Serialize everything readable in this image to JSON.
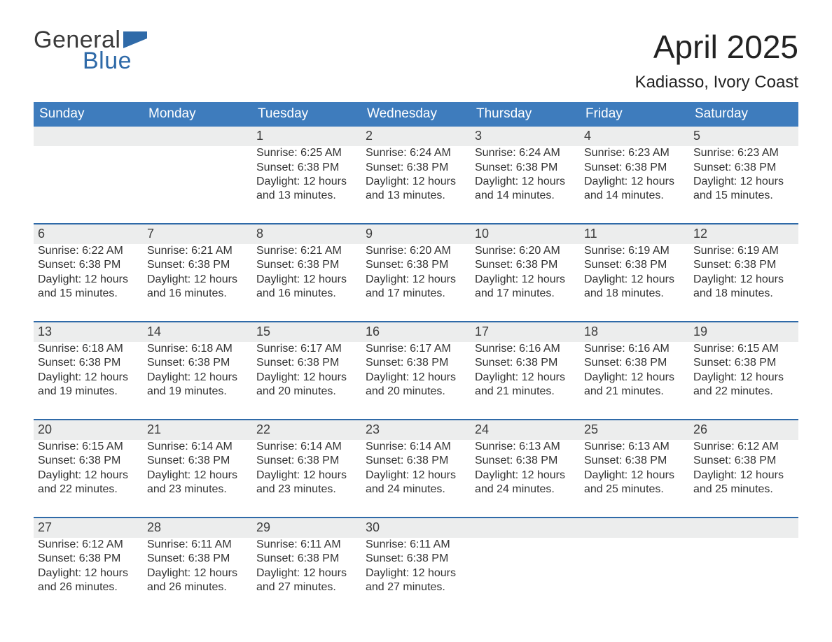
{
  "logo": {
    "word1": "General",
    "word2": "Blue"
  },
  "header": {
    "title": "April 2025",
    "location": "Kadiasso, Ivory Coast"
  },
  "colors": {
    "header_bg": "#3e7cbd",
    "header_fg": "#ffffff",
    "daynum_bg": "#eceded",
    "rule": "#2f6aa8",
    "text": "#333333",
    "logo_blue": "#2f6aa8"
  },
  "typography": {
    "title_fontsize": 46,
    "location_fontsize": 24,
    "weekday_fontsize": 19,
    "daynum_fontsize": 18,
    "cell_fontsize": 16
  },
  "calendar": {
    "type": "month-grid",
    "weekdays": [
      "Sunday",
      "Monday",
      "Tuesday",
      "Wednesday",
      "Thursday",
      "Friday",
      "Saturday"
    ],
    "labels": {
      "sunrise": "Sunrise: ",
      "sunset": "Sunset: ",
      "daylight": "Daylight: "
    },
    "weeks": [
      [
        null,
        null,
        {
          "n": "1",
          "sunrise": "6:25 AM",
          "sunset": "6:38 PM",
          "daylight": "12 hours and 13 minutes."
        },
        {
          "n": "2",
          "sunrise": "6:24 AM",
          "sunset": "6:38 PM",
          "daylight": "12 hours and 13 minutes."
        },
        {
          "n": "3",
          "sunrise": "6:24 AM",
          "sunset": "6:38 PM",
          "daylight": "12 hours and 14 minutes."
        },
        {
          "n": "4",
          "sunrise": "6:23 AM",
          "sunset": "6:38 PM",
          "daylight": "12 hours and 14 minutes."
        },
        {
          "n": "5",
          "sunrise": "6:23 AM",
          "sunset": "6:38 PM",
          "daylight": "12 hours and 15 minutes."
        }
      ],
      [
        {
          "n": "6",
          "sunrise": "6:22 AM",
          "sunset": "6:38 PM",
          "daylight": "12 hours and 15 minutes."
        },
        {
          "n": "7",
          "sunrise": "6:21 AM",
          "sunset": "6:38 PM",
          "daylight": "12 hours and 16 minutes."
        },
        {
          "n": "8",
          "sunrise": "6:21 AM",
          "sunset": "6:38 PM",
          "daylight": "12 hours and 16 minutes."
        },
        {
          "n": "9",
          "sunrise": "6:20 AM",
          "sunset": "6:38 PM",
          "daylight": "12 hours and 17 minutes."
        },
        {
          "n": "10",
          "sunrise": "6:20 AM",
          "sunset": "6:38 PM",
          "daylight": "12 hours and 17 minutes."
        },
        {
          "n": "11",
          "sunrise": "6:19 AM",
          "sunset": "6:38 PM",
          "daylight": "12 hours and 18 minutes."
        },
        {
          "n": "12",
          "sunrise": "6:19 AM",
          "sunset": "6:38 PM",
          "daylight": "12 hours and 18 minutes."
        }
      ],
      [
        {
          "n": "13",
          "sunrise": "6:18 AM",
          "sunset": "6:38 PM",
          "daylight": "12 hours and 19 minutes."
        },
        {
          "n": "14",
          "sunrise": "6:18 AM",
          "sunset": "6:38 PM",
          "daylight": "12 hours and 19 minutes."
        },
        {
          "n": "15",
          "sunrise": "6:17 AM",
          "sunset": "6:38 PM",
          "daylight": "12 hours and 20 minutes."
        },
        {
          "n": "16",
          "sunrise": "6:17 AM",
          "sunset": "6:38 PM",
          "daylight": "12 hours and 20 minutes."
        },
        {
          "n": "17",
          "sunrise": "6:16 AM",
          "sunset": "6:38 PM",
          "daylight": "12 hours and 21 minutes."
        },
        {
          "n": "18",
          "sunrise": "6:16 AM",
          "sunset": "6:38 PM",
          "daylight": "12 hours and 21 minutes."
        },
        {
          "n": "19",
          "sunrise": "6:15 AM",
          "sunset": "6:38 PM",
          "daylight": "12 hours and 22 minutes."
        }
      ],
      [
        {
          "n": "20",
          "sunrise": "6:15 AM",
          "sunset": "6:38 PM",
          "daylight": "12 hours and 22 minutes."
        },
        {
          "n": "21",
          "sunrise": "6:14 AM",
          "sunset": "6:38 PM",
          "daylight": "12 hours and 23 minutes."
        },
        {
          "n": "22",
          "sunrise": "6:14 AM",
          "sunset": "6:38 PM",
          "daylight": "12 hours and 23 minutes."
        },
        {
          "n": "23",
          "sunrise": "6:14 AM",
          "sunset": "6:38 PM",
          "daylight": "12 hours and 24 minutes."
        },
        {
          "n": "24",
          "sunrise": "6:13 AM",
          "sunset": "6:38 PM",
          "daylight": "12 hours and 24 minutes."
        },
        {
          "n": "25",
          "sunrise": "6:13 AM",
          "sunset": "6:38 PM",
          "daylight": "12 hours and 25 minutes."
        },
        {
          "n": "26",
          "sunrise": "6:12 AM",
          "sunset": "6:38 PM",
          "daylight": "12 hours and 25 minutes."
        }
      ],
      [
        {
          "n": "27",
          "sunrise": "6:12 AM",
          "sunset": "6:38 PM",
          "daylight": "12 hours and 26 minutes."
        },
        {
          "n": "28",
          "sunrise": "6:11 AM",
          "sunset": "6:38 PM",
          "daylight": "12 hours and 26 minutes."
        },
        {
          "n": "29",
          "sunrise": "6:11 AM",
          "sunset": "6:38 PM",
          "daylight": "12 hours and 27 minutes."
        },
        {
          "n": "30",
          "sunrise": "6:11 AM",
          "sunset": "6:38 PM",
          "daylight": "12 hours and 27 minutes."
        },
        null,
        null,
        null
      ]
    ]
  }
}
